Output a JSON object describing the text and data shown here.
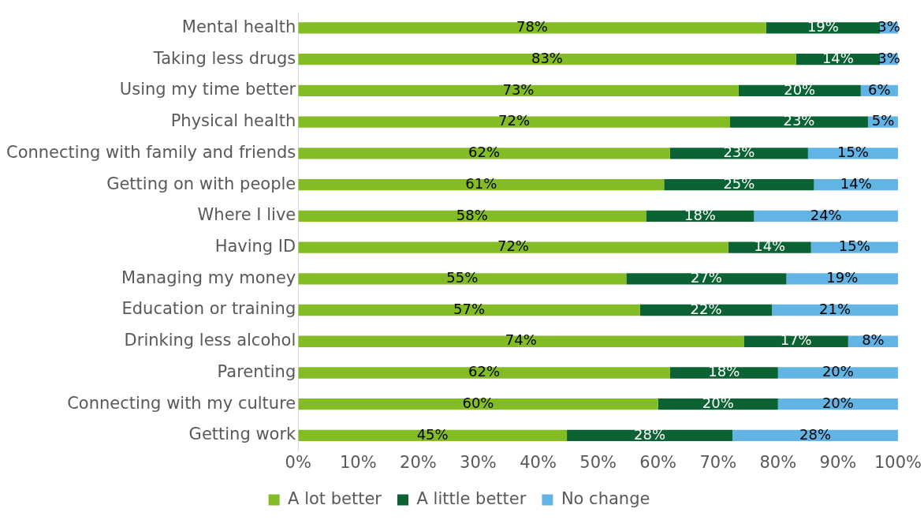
{
  "chart_data": {
    "type": "bar",
    "orientation": "horizontal",
    "stacked": true,
    "categories": [
      "Mental health",
      "Taking less drugs",
      "Using my time better",
      "Physical health",
      "Connecting with family and friends",
      "Getting on with people",
      "Where I live",
      "Having ID",
      "Managing my money",
      "Education or training",
      "Drinking less alcohol",
      "Parenting",
      "Connecting with my culture",
      "Getting work"
    ],
    "series": [
      {
        "name": "A lot better",
        "color": "#84bc26",
        "values": [
          78,
          83,
          73.4,
          72,
          62,
          61,
          58,
          71.7,
          54.7,
          57,
          74.3,
          62,
          60,
          44.8
        ],
        "value_labels": [
          "78%",
          "83%",
          "73%",
          "72%",
          "62%",
          "61%",
          "58%",
          "72%",
          "55%",
          "57%",
          "74%",
          "62%",
          "60%",
          "45%"
        ]
      },
      {
        "name": "A little better",
        "color": "#0b6233",
        "values": [
          19,
          14,
          20.4,
          23,
          23,
          25,
          18,
          13.8,
          26.7,
          22,
          17.4,
          18,
          20,
          27.6
        ],
        "value_labels": [
          "19%",
          "14%",
          "20%",
          "23%",
          "23%",
          "25%",
          "18%",
          "14%",
          "27%",
          "22%",
          "17%",
          "18%",
          "20%",
          "28%"
        ]
      },
      {
        "name": "No change",
        "color": "#62b4e4",
        "values": [
          3,
          3,
          6.2,
          5,
          15,
          14,
          24,
          14.5,
          18.6,
          21,
          8.3,
          20,
          20,
          27.6
        ],
        "value_labels": [
          "3%",
          "3%",
          "6%",
          "5%",
          "15%",
          "14%",
          "24%",
          "15%",
          "19%",
          "21%",
          "8%",
          "20%",
          "20%",
          "28%"
        ]
      }
    ],
    "xlim": [
      0,
      100
    ],
    "xticks": [
      {
        "value": 0,
        "label": "0%"
      },
      {
        "value": 10,
        "label": "10%"
      },
      {
        "value": 20,
        "label": "20%"
      },
      {
        "value": 30,
        "label": "30%"
      },
      {
        "value": 40,
        "label": "40%"
      },
      {
        "value": 50,
        "label": "50%"
      },
      {
        "value": 60,
        "label": "60%"
      },
      {
        "value": 70,
        "label": "70%"
      },
      {
        "value": 80,
        "label": "80%"
      },
      {
        "value": 90,
        "label": "90%"
      },
      {
        "value": 100,
        "label": "100%"
      }
    ],
    "grid": false,
    "legend": "bottom"
  }
}
